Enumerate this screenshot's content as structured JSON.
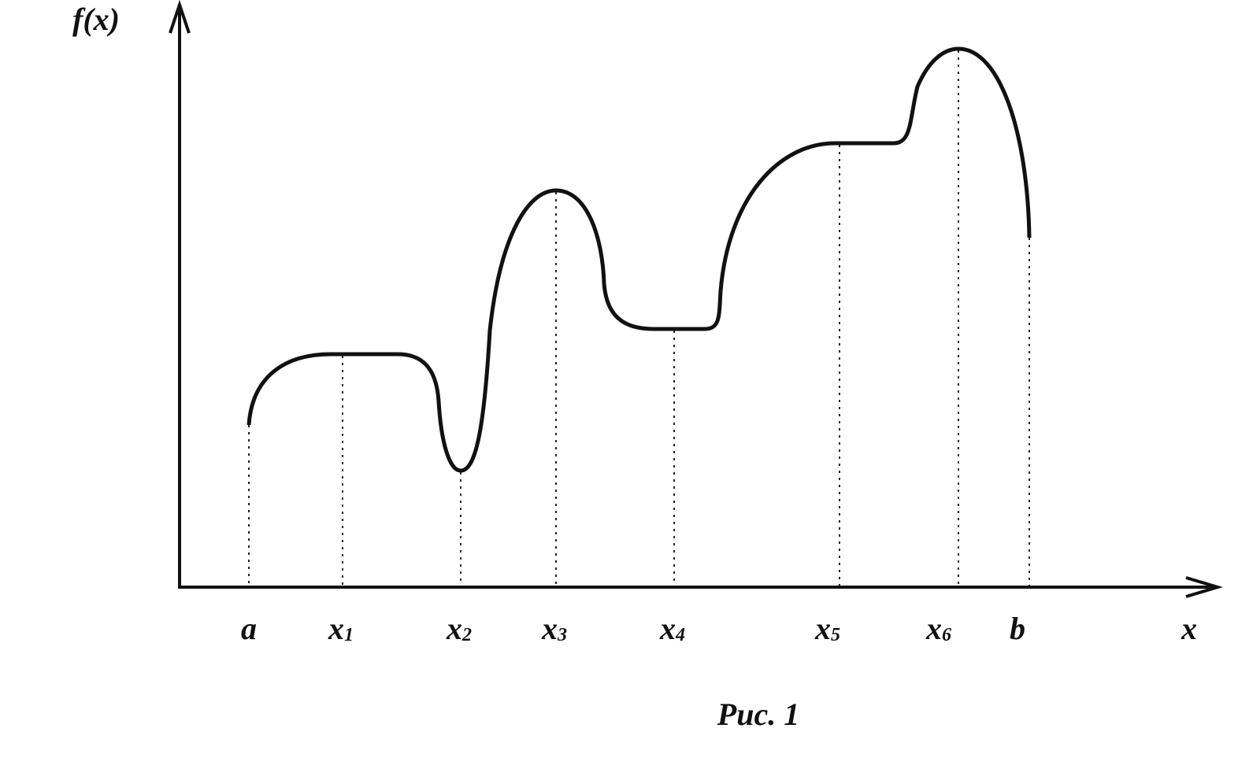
{
  "y_axis_label": "f(x)",
  "x_axis_label": "x",
  "points": [
    {
      "label": "a"
    },
    {
      "label": "x",
      "subscript": "1"
    },
    {
      "label": "x",
      "subscript": "2"
    },
    {
      "label": "x",
      "subscript": "3"
    },
    {
      "label": "x",
      "subscript": "4"
    },
    {
      "label": "x",
      "subscript": "5"
    },
    {
      "label": "x",
      "subscript": "6"
    },
    {
      "label": "b"
    }
  ],
  "caption": "Рис. 1"
}
